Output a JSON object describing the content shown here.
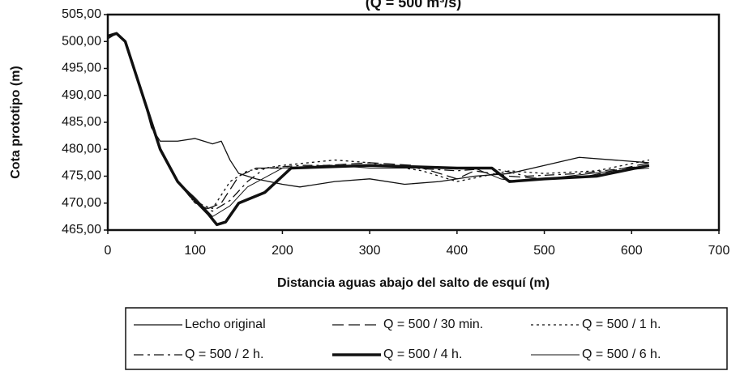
{
  "chart_data": {
    "type": "line",
    "title": "(Q = 500 m³/s)",
    "xlabel": "Distancia aguas abajo del salto de esquí  (m)",
    "ylabel": "Cota prototipo (m)",
    "xlim": [
      0,
      700
    ],
    "xticks": [
      0,
      100,
      200,
      300,
      400,
      500,
      600,
      700
    ],
    "ylim": [
      465,
      505
    ],
    "yticks": [
      {
        "value": 465,
        "label": "465,00"
      },
      {
        "value": 470,
        "label": "470,00"
      },
      {
        "value": 475,
        "label": "475,00"
      },
      {
        "value": 480,
        "label": "480,00"
      },
      {
        "value": 485,
        "label": "485,00"
      },
      {
        "value": 490,
        "label": "490,00"
      },
      {
        "value": 495,
        "label": "495,00"
      },
      {
        "value": 500,
        "label": "500,00"
      },
      {
        "value": 505,
        "label": "505,00"
      }
    ],
    "grid": false,
    "legend": "bottom",
    "series": [
      {
        "name": "Lecho original",
        "color": "#111111",
        "dash": "solid",
        "width": 1.3,
        "x": [
          0,
          10,
          20,
          30,
          40,
          50,
          60,
          80,
          100,
          110,
          120,
          130,
          140,
          150,
          170,
          200,
          220,
          260,
          300,
          340,
          380,
          420,
          460,
          500,
          540,
          580,
          620
        ],
        "values": [
          500.5,
          501.5,
          500,
          495,
          490,
          484,
          481.5,
          481.5,
          482,
          481.5,
          481,
          481.5,
          478,
          475.5,
          474.5,
          473.5,
          473,
          474,
          474.5,
          473.5,
          474,
          475,
          475.5,
          477,
          478.5,
          478,
          477.5
        ]
      },
      {
        "name": "Q = 500 / 30 min.",
        "color": "#111111",
        "dash": "dashed",
        "width": 1.3,
        "x": [
          0,
          10,
          20,
          40,
          60,
          80,
          100,
          115,
          130,
          150,
          170,
          200,
          250,
          300,
          350,
          380,
          400,
          420,
          460,
          500,
          550,
          620
        ],
        "values": [
          501,
          501.5,
          500,
          490,
          480,
          474,
          470.5,
          469,
          470,
          475,
          476.5,
          476.5,
          477,
          477.5,
          477,
          475.5,
          474.5,
          476,
          475,
          474.5,
          475,
          477.5
        ]
      },
      {
        "name": "Q = 500 / 1 h.",
        "color": "#111111",
        "dash": "dotted",
        "width": 1.3,
        "x": [
          0,
          10,
          20,
          40,
          60,
          80,
          100,
          120,
          140,
          160,
          200,
          260,
          300,
          360,
          400,
          430,
          460,
          500,
          560,
          620
        ],
        "values": [
          501,
          501.5,
          500,
          490,
          480,
          474,
          470,
          469,
          474,
          476,
          477,
          478,
          477.5,
          476,
          474,
          475,
          476,
          475.5,
          476,
          478
        ]
      },
      {
        "name": "Q = 500 / 2 h.",
        "color": "#111111",
        "dash": "dashdot",
        "width": 1.3,
        "x": [
          0,
          10,
          20,
          40,
          60,
          80,
          100,
          120,
          140,
          160,
          180,
          220,
          300,
          400,
          440,
          480,
          540,
          620
        ],
        "values": [
          501,
          501.5,
          500,
          490,
          480,
          474,
          470,
          468.5,
          470.5,
          474,
          476.5,
          477,
          477,
          476,
          476.5,
          475,
          475.5,
          477
        ]
      },
      {
        "name": "Q = 500 / 4 h.",
        "color": "#111111",
        "dash": "solid",
        "width": 3.5,
        "x": [
          0,
          10,
          20,
          40,
          60,
          80,
          100,
          115,
          125,
          135,
          150,
          180,
          210,
          300,
          400,
          440,
          460,
          500,
          560,
          620
        ],
        "values": [
          501,
          501.5,
          500,
          490,
          480,
          474,
          470.5,
          468,
          466,
          466.5,
          470,
          472,
          476.5,
          477,
          476.5,
          476.5,
          474,
          474.5,
          475,
          477
        ]
      },
      {
        "name": "Q = 500 / 6 h.",
        "color": "#111111",
        "dash": "solid",
        "width": 1,
        "x": [
          0,
          10,
          20,
          40,
          60,
          80,
          100,
          120,
          140,
          160,
          200,
          260,
          300,
          420,
          450,
          470,
          500,
          580,
          620
        ],
        "values": [
          501,
          501.5,
          500,
          490,
          480,
          474,
          471,
          467.5,
          469.5,
          473,
          476.5,
          477,
          476.5,
          476.5,
          474.5,
          474,
          474.5,
          476,
          476.5
        ]
      }
    ]
  }
}
